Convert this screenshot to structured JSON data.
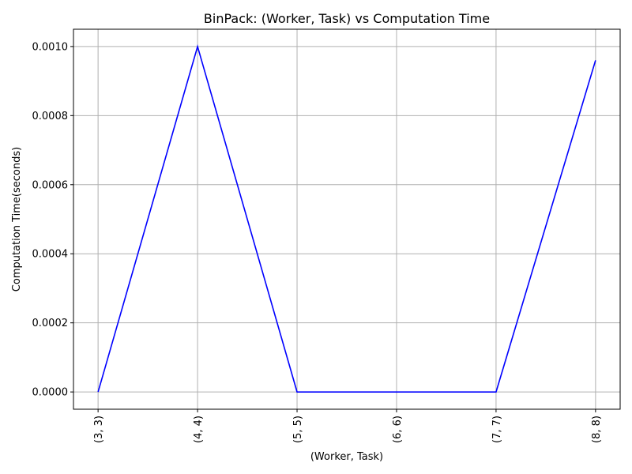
{
  "chart_data": {
    "type": "line",
    "title": "BinPack: (Worker, Task) vs Computation Time",
    "xlabel": "(Worker, Task)",
    "ylabel": "Computation Time(seconds)",
    "categories": [
      "(3, 3)",
      "(4, 4)",
      "(5, 5)",
      "(6, 6)",
      "(7, 7)",
      "(8, 8)"
    ],
    "series": [
      {
        "values": [
          0.0,
          0.001,
          0.0,
          0.0,
          0.0,
          0.00096
        ],
        "color": "#0000ff"
      }
    ],
    "ylim": [
      -5e-05,
      0.00105
    ],
    "yticks": [
      "0.0000",
      "0.0002",
      "0.0004",
      "0.0006",
      "0.0008",
      "0.0010"
    ],
    "grid": true,
    "x_tick_rotation": "vertical"
  }
}
